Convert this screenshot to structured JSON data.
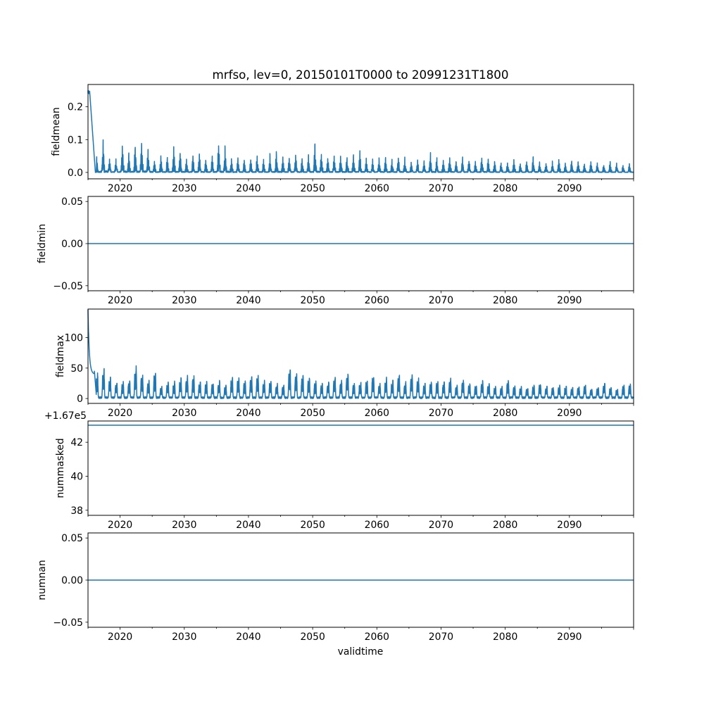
{
  "title": "mrfso, lev=0, 20150101T0000 to 20991231T1800",
  "xlabel": "validtime",
  "line_color": "#1f77b4",
  "chart_data": [
    {
      "type": "line",
      "ylabel": "fieldmean",
      "xlim": [
        2015,
        2100
      ],
      "ylim": [
        -0.0195,
        0.268
      ],
      "x_ticks": [
        "2020",
        "2030",
        "2040",
        "2050",
        "2060",
        "2070",
        "2080",
        "2090"
      ],
      "y_ticks": [
        {
          "v": 0.0,
          "label": "0.0"
        },
        {
          "v": 0.1,
          "label": "0.1"
        },
        {
          "v": 0.2,
          "label": "0.2"
        }
      ],
      "initial_value": 0.25,
      "annual_peaks_from_2016": [
        0.045,
        0.085,
        0.04,
        0.035,
        0.078,
        0.05,
        0.07,
        0.085,
        0.06,
        0.035,
        0.045,
        0.04,
        0.065,
        0.055,
        0.035,
        0.05,
        0.053,
        0.035,
        0.043,
        0.075,
        0.07,
        0.038,
        0.037,
        0.035,
        0.04,
        0.045,
        0.035,
        0.05,
        0.055,
        0.04,
        0.045,
        0.05,
        0.035,
        0.045,
        0.075,
        0.05,
        0.04,
        0.045,
        0.05,
        0.04,
        0.045,
        0.055,
        0.04,
        0.035,
        0.045,
        0.04,
        0.035,
        0.045,
        0.04,
        0.03,
        0.035,
        0.03,
        0.055,
        0.04,
        0.035,
        0.045,
        0.03,
        0.04,
        0.035,
        0.03,
        0.045,
        0.035,
        0.03,
        0.025,
        0.03,
        0.035,
        0.025,
        0.03,
        0.04,
        0.03,
        0.025,
        0.03,
        0.035,
        0.025,
        0.03,
        0.03,
        0.025,
        0.03,
        0.025,
        0.02,
        0.03,
        0.025,
        0.02,
        0.025
      ]
    },
    {
      "type": "line",
      "ylabel": "fieldmin",
      "xlim": [
        2015,
        2100
      ],
      "ylim": [
        -0.056,
        0.056
      ],
      "x_ticks": [
        "2020",
        "2030",
        "2040",
        "2050",
        "2060",
        "2070",
        "2080",
        "2090"
      ],
      "y_ticks": [
        {
          "v": -0.05,
          "label": "−0.05"
        },
        {
          "v": 0.0,
          "label": "0.00"
        },
        {
          "v": 0.05,
          "label": "0.05"
        }
      ],
      "constant_value": 0.0
    },
    {
      "type": "line",
      "ylabel": "fieldmax",
      "xlim": [
        2015,
        2100
      ],
      "ylim": [
        -8,
        147
      ],
      "x_ticks": [
        "2020",
        "2030",
        "2040",
        "2050",
        "2060",
        "2070",
        "2080",
        "2090"
      ],
      "y_ticks": [
        {
          "v": 0,
          "label": "0"
        },
        {
          "v": 50,
          "label": "50"
        },
        {
          "v": 100,
          "label": "100"
        }
      ],
      "initial_value": 146,
      "annual_peaks_from_2016": [
        42,
        50,
        35,
        25,
        28,
        30,
        55,
        45,
        30,
        48,
        20,
        28,
        30,
        35,
        40,
        38,
        30,
        28,
        25,
        30,
        22,
        38,
        35,
        30,
        40,
        38,
        30,
        32,
        25,
        22,
        50,
        45,
        38,
        35,
        30,
        25,
        28,
        35,
        30,
        45,
        25,
        28,
        30,
        40,
        25,
        35,
        30,
        42,
        28,
        40,
        35,
        25,
        30,
        30,
        28,
        35,
        22,
        32,
        25,
        22,
        30,
        25,
        20,
        20,
        30,
        22,
        20,
        18,
        22,
        25,
        20,
        18,
        22,
        20,
        18,
        20,
        22,
        15,
        18,
        25,
        18,
        15,
        22,
        25
      ]
    },
    {
      "type": "line",
      "ylabel": "nummasked",
      "xlim": [
        2015,
        2100
      ],
      "ylim": [
        37.7,
        43.25
      ],
      "offset_text": "+1.67e5",
      "x_ticks": [
        "2020",
        "2030",
        "2040",
        "2050",
        "2060",
        "2070",
        "2080",
        "2090"
      ],
      "y_ticks": [
        {
          "v": 38,
          "label": "38"
        },
        {
          "v": 40,
          "label": "40"
        },
        {
          "v": 42,
          "label": "42"
        }
      ],
      "constant_value": 43
    },
    {
      "type": "line",
      "ylabel": "numnan",
      "xlim": [
        2015,
        2100
      ],
      "ylim": [
        -0.056,
        0.056
      ],
      "x_ticks": [
        "2020",
        "2030",
        "2040",
        "2050",
        "2060",
        "2070",
        "2080",
        "2090"
      ],
      "y_ticks": [
        {
          "v": -0.05,
          "label": "−0.05"
        },
        {
          "v": 0.0,
          "label": "0.00"
        },
        {
          "v": 0.05,
          "label": "0.05"
        }
      ],
      "constant_value": 0.0
    }
  ]
}
